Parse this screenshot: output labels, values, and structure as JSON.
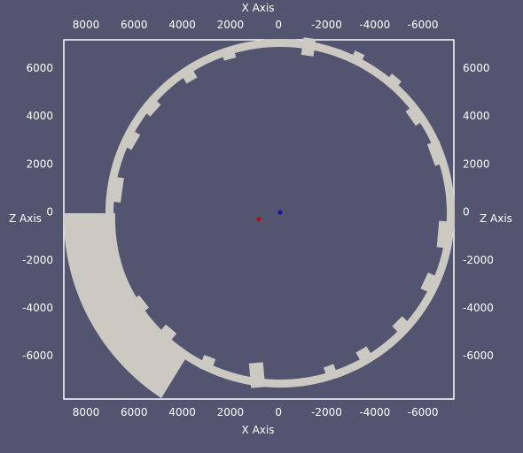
{
  "view": {
    "background_color": "#525470",
    "axes_color": "#ffffff",
    "geometry_color": "#cbc9c2",
    "marker_colors": {
      "red": "#b01010",
      "blue": "#1018b0"
    }
  },
  "axes": {
    "x_title": "X Axis",
    "z_title": "Z Axis",
    "x_ticks": [
      "8000",
      "6000",
      "4000",
      "2000",
      "0",
      "-2000",
      "-4000",
      "-6000"
    ],
    "z_ticks": [
      "6000",
      "4000",
      "2000",
      "0",
      "-2000",
      "-4000",
      "-6000"
    ]
  },
  "markers": [
    {
      "name": "red-point",
      "x": 870,
      "z": -300
    },
    {
      "name": "blue-point",
      "x": 0,
      "z": 0
    }
  ]
}
